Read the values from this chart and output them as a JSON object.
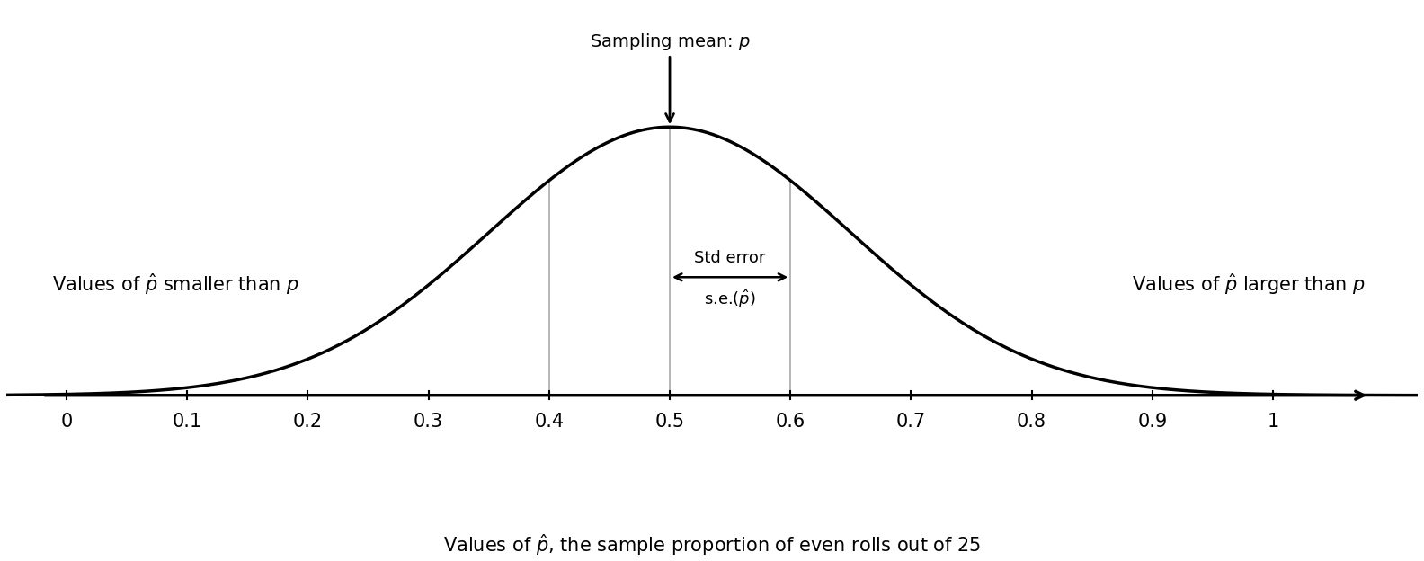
{
  "mean": 0.5,
  "std": 0.15,
  "x_min": 0.0,
  "x_max": 1.0,
  "tick_positions": [
    0.0,
    0.1,
    0.2,
    0.3,
    0.4,
    0.5,
    0.6,
    0.7,
    0.8,
    0.9,
    1.0
  ],
  "tick_labels": [
    "0",
    "0.1",
    "0.2",
    "0.3",
    "0.4",
    "0.5",
    "0.6",
    "0.7",
    "0.8",
    "0.9",
    "1"
  ],
  "vline_positions": [
    0.4,
    0.5,
    0.6
  ],
  "xlabel": "Values of $\\hat{p}$, the sample proportion of even rolls out of 25",
  "left_label": "Values of $\\hat{p}$ smaller than $p$",
  "right_label": "Values of $\\hat{p}$ larger than $p$",
  "sampling_mean_label": "Sampling mean: $p$",
  "std_error_top_label": "Std error",
  "std_error_bottom_label": "s.e.($\\hat{p}$)",
  "bg_color": "#ffffff",
  "curve_color": "#000000",
  "vline_color": "#aaaaaa",
  "text_color": "#000000",
  "axis_color": "#000000",
  "fontsize_labels": 15,
  "fontsize_ticks": 15,
  "fontsize_xlabel": 15,
  "fontsize_annot": 14,
  "fontsize_std": 13
}
